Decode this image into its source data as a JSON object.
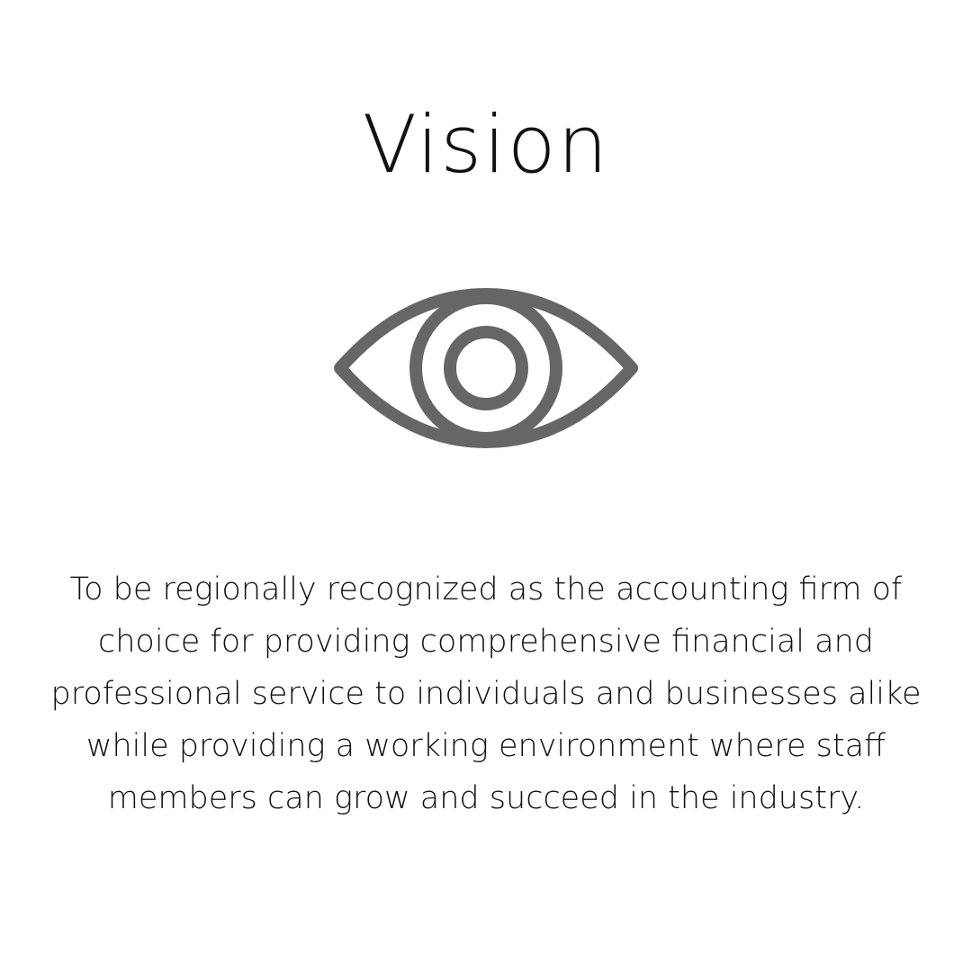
{
  "title": "Vision",
  "icon": {
    "name": "eye-icon",
    "color": "#666666"
  },
  "statement": "To be regionally recognized as the accounting firm of choice for providing comprehensive financial and professional service to individuals and businesses alike while providing a working environment where staff members can grow and succeed in the industry."
}
